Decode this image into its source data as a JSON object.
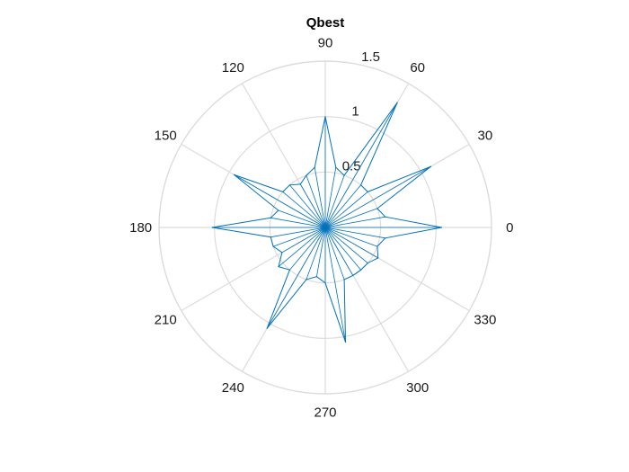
{
  "chart_data": {
    "type": "polar",
    "title": "Qbest",
    "rlim": [
      0,
      1.5
    ],
    "r_ticks": [
      "0.5",
      "1",
      "1.5"
    ],
    "r_tick_values": [
      0.5,
      1,
      1.5
    ],
    "theta_ticks": [
      "0",
      "30",
      "60",
      "90",
      "120",
      "150",
      "180",
      "210",
      "240",
      "270",
      "300",
      "330"
    ],
    "theta_tick_values": [
      0,
      30,
      60,
      90,
      120,
      150,
      180,
      210,
      240,
      270,
      300,
      330
    ],
    "grid": true,
    "series": [
      {
        "color": "#0072BD",
        "theta_deg": [
          0,
          10,
          20,
          30,
          40,
          50,
          60,
          70,
          80,
          90,
          100,
          110,
          120,
          130,
          140,
          150,
          160,
          170,
          180,
          190,
          200,
          210,
          220,
          230,
          240,
          250,
          260,
          270,
          280,
          290,
          300,
          310,
          320,
          330,
          340,
          350
        ],
        "r": [
          1.05,
          0.55,
          0.5,
          1.1,
          0.5,
          0.5,
          1.3,
          0.5,
          0.55,
          1.0,
          0.55,
          0.5,
          0.45,
          0.5,
          0.5,
          0.95,
          0.45,
          0.5,
          1.02,
          0.5,
          0.5,
          0.45,
          0.55,
          0.5,
          1.05,
          0.5,
          0.45,
          0.5,
          1.05,
          0.5,
          0.5,
          0.5,
          0.5,
          0.55,
          0.5,
          0.55
        ]
      }
    ]
  }
}
